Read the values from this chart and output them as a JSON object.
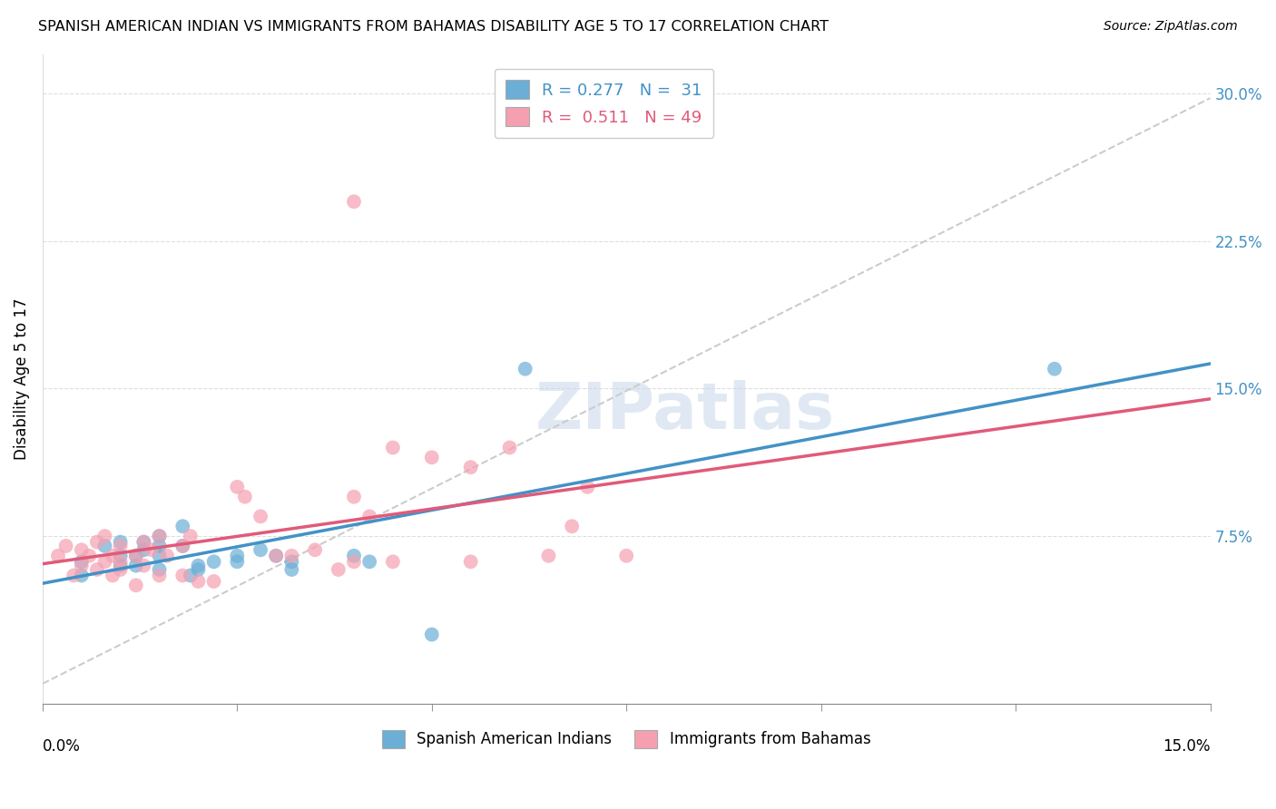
{
  "title": "SPANISH AMERICAN INDIAN VS IMMIGRANTS FROM BAHAMAS DISABILITY AGE 5 TO 17 CORRELATION CHART",
  "source": "Source: ZipAtlas.com",
  "ylabel": "Disability Age 5 to 17",
  "ytick_labels": [
    "7.5%",
    "15.0%",
    "22.5%",
    "30.0%"
  ],
  "ytick_vals": [
    0.075,
    0.15,
    0.225,
    0.3
  ],
  "xlim": [
    0.0,
    0.15
  ],
  "ylim": [
    -0.01,
    0.32
  ],
  "legend1_r": "0.277",
  "legend1_n": "31",
  "legend2_r": "0.511",
  "legend2_n": "49",
  "color_blue": "#6baed6",
  "color_pink": "#f4a0b0",
  "line_blue": "#4292c6",
  "line_pink": "#e05a7a",
  "line_dash": "#cccccc",
  "watermark": "ZIPatlas",
  "blue_points_x": [
    0.005,
    0.005,
    0.008,
    0.01,
    0.01,
    0.01,
    0.012,
    0.012,
    0.013,
    0.013,
    0.015,
    0.015,
    0.015,
    0.015,
    0.018,
    0.018,
    0.019,
    0.02,
    0.02,
    0.022,
    0.025,
    0.025,
    0.028,
    0.03,
    0.032,
    0.032,
    0.04,
    0.042,
    0.05,
    0.062,
    0.13
  ],
  "blue_points_y": [
    0.055,
    0.062,
    0.07,
    0.06,
    0.065,
    0.072,
    0.06,
    0.065,
    0.068,
    0.072,
    0.075,
    0.065,
    0.07,
    0.058,
    0.08,
    0.07,
    0.055,
    0.06,
    0.058,
    0.062,
    0.065,
    0.062,
    0.068,
    0.065,
    0.062,
    0.058,
    0.065,
    0.062,
    0.025,
    0.16,
    0.16
  ],
  "pink_points_x": [
    0.002,
    0.003,
    0.004,
    0.005,
    0.005,
    0.006,
    0.007,
    0.007,
    0.008,
    0.008,
    0.009,
    0.009,
    0.01,
    0.01,
    0.01,
    0.012,
    0.012,
    0.013,
    0.013,
    0.014,
    0.015,
    0.015,
    0.016,
    0.018,
    0.018,
    0.019,
    0.02,
    0.022,
    0.025,
    0.026,
    0.028,
    0.03,
    0.032,
    0.035,
    0.038,
    0.04,
    0.04,
    0.042,
    0.045,
    0.045,
    0.05,
    0.055,
    0.06,
    0.065,
    0.07,
    0.075,
    0.055,
    0.04,
    0.068
  ],
  "pink_points_y": [
    0.065,
    0.07,
    0.055,
    0.06,
    0.068,
    0.065,
    0.072,
    0.058,
    0.062,
    0.075,
    0.055,
    0.065,
    0.058,
    0.07,
    0.062,
    0.065,
    0.05,
    0.06,
    0.072,
    0.068,
    0.055,
    0.075,
    0.065,
    0.055,
    0.07,
    0.075,
    0.052,
    0.052,
    0.1,
    0.095,
    0.085,
    0.065,
    0.065,
    0.068,
    0.058,
    0.062,
    0.095,
    0.085,
    0.062,
    0.12,
    0.115,
    0.11,
    0.12,
    0.065,
    0.1,
    0.065,
    0.062,
    0.245,
    0.08
  ]
}
